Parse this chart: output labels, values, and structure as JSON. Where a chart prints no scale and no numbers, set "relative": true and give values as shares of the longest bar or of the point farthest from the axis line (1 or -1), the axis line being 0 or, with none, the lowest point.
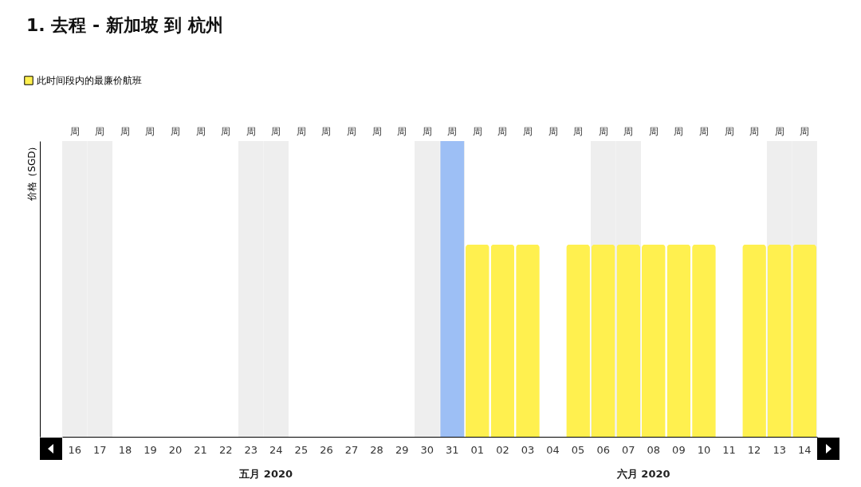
{
  "chart_data": {
    "type": "bar",
    "title": "1. 去程 - 新加坡 到 杭州",
    "ylabel": "价格（SGD）",
    "relative": true,
    "categories": [
      "16",
      "17",
      "18",
      "19",
      "20",
      "21",
      "22",
      "23",
      "24",
      "25",
      "26",
      "27",
      "28",
      "29",
      "30",
      "31",
      "01",
      "02",
      "03",
      "04",
      "05",
      "06",
      "07",
      "08",
      "09",
      "10",
      "11",
      "12",
      "13",
      "14"
    ],
    "series": [
      {
        "name": "此时间段内的最廉价航班",
        "color": "#fff04f",
        "values": [
          null,
          null,
          null,
          null,
          null,
          null,
          null,
          null,
          null,
          null,
          null,
          null,
          null,
          null,
          null,
          null,
          0.65,
          0.65,
          0.65,
          null,
          0.65,
          0.65,
          0.65,
          0.65,
          0.65,
          0.65,
          null,
          0.65,
          0.65,
          0.65
        ]
      },
      {
        "color": "#9dbff5",
        "values": [
          null,
          null,
          null,
          null,
          null,
          null,
          null,
          null,
          null,
          null,
          null,
          null,
          null,
          null,
          null,
          1,
          null,
          null,
          null,
          null,
          null,
          null,
          null,
          null,
          null,
          null,
          null,
          null,
          null,
          null
        ]
      }
    ],
    "bands": [
      {
        "axis": "x",
        "from": "16",
        "to": "17",
        "color": "#eeeeee"
      },
      {
        "axis": "x",
        "from": "23",
        "to": "24",
        "color": "#eeeeee"
      },
      {
        "axis": "x",
        "from": "30",
        "to": "31",
        "color": "#eeeeee"
      },
      {
        "axis": "x",
        "from": "06",
        "to": "07",
        "color": "#eeeeee"
      },
      {
        "axis": "x",
        "from": "13",
        "to": "14",
        "color": "#eeeeee"
      }
    ],
    "annotations": [
      "周",
      "周",
      "周",
      "周",
      "周",
      "周",
      "周",
      "周",
      "周",
      "周",
      "周",
      "周",
      "周",
      "周",
      "周",
      "周",
      "周",
      "周",
      "周",
      "周",
      "周",
      "周",
      "周",
      "周",
      "周",
      "周",
      "周",
      "周",
      "周",
      "周",
      "五月 2020",
      "六月 2020"
    ],
    "legend": "top left"
  }
}
